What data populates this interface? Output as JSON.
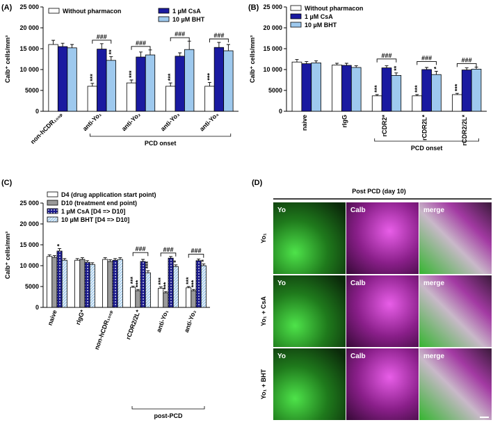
{
  "chart_data": [
    {
      "type": "bar",
      "panel": "(A)",
      "ylabel": "Calb⁺ cells/mm³",
      "categories": [
        "non-hCDR₁₀₀ₚ",
        "anti-Yo₁",
        "anti-Yo₂",
        "anti-Yo₃",
        "anti-Yo₄"
      ],
      "series": [
        {
          "name": "Without pharmacon",
          "color": "#ffffff",
          "values": [
            16000,
            6000,
            6800,
            6000,
            6000
          ],
          "errors": [
            1000,
            700,
            700,
            800,
            900
          ],
          "sig": [
            null,
            "***",
            "***",
            "***",
            "***"
          ]
        },
        {
          "name": "1 µM CsA",
          "color": "#1a1aa0",
          "values": [
            15500,
            14900,
            13000,
            13200,
            15300
          ],
          "errors": [
            800,
            1300,
            1200,
            800,
            1200
          ],
          "sig": [
            null,
            null,
            null,
            null,
            null
          ]
        },
        {
          "name": "10 µM BHT",
          "color": "#9ec9ee",
          "values": [
            15200,
            12200,
            13500,
            14800,
            14500
          ],
          "errors": [
            800,
            900,
            1200,
            2000,
            1500
          ],
          "sig": [
            null,
            "**",
            null,
            null,
            null
          ]
        }
      ],
      "group_sig": [
        null,
        "###",
        "###",
        "###",
        "###"
      ],
      "group_label": "PCD onset",
      "ylim": [
        0,
        25000
      ],
      "yticks": [
        0,
        5000,
        {
          "value": 10000,
          "label": "10 000"
        },
        {
          "value": 15000,
          "label": "15 000"
        },
        {
          "value": 20000,
          "label": "20 000"
        },
        {
          "value": 25000,
          "label": "25 000"
        }
      ]
    },
    {
      "type": "bar",
      "panel": "(B)",
      "ylabel": "Calb⁺ cells/mm³",
      "categories": [
        "naive",
        "rIgG",
        "rCDR2*",
        "rCDR2L*",
        "rCDR2/2L*"
      ],
      "series": [
        {
          "name": "Without pharmacon",
          "color": "#ffffff",
          "values": [
            11800,
            11100,
            3700,
            3700,
            4000
          ],
          "errors": [
            600,
            400,
            300,
            300,
            300
          ],
          "sig": [
            null,
            null,
            "***",
            "***",
            "***"
          ]
        },
        {
          "name": "1 µM CsA",
          "color": "#1a1aa0",
          "values": [
            11400,
            11000,
            10400,
            10000,
            9900
          ],
          "errors": [
            500,
            500,
            500,
            500,
            500
          ],
          "sig": [
            null,
            null,
            null,
            null,
            null
          ]
        },
        {
          "name": "10 µM BHT",
          "color": "#9ec9ee",
          "values": [
            11600,
            10500,
            8600,
            8800,
            10100
          ],
          "errors": [
            500,
            400,
            600,
            800,
            500
          ],
          "sig": [
            null,
            null,
            "**",
            "*",
            null
          ]
        }
      ],
      "group_sig": [
        null,
        null,
        "###",
        "###",
        "###"
      ],
      "group_label": "PCD onset",
      "ylim": [
        0,
        25000
      ],
      "yticks": [
        0,
        5000,
        {
          "value": 10000,
          "label": "10 000"
        },
        {
          "value": 15000,
          "label": "15 000"
        },
        {
          "value": 20000,
          "label": "20 000"
        },
        {
          "value": 25000,
          "label": "25 000"
        }
      ]
    },
    {
      "type": "bar",
      "panel": "(C)",
      "ylabel": "Calb⁺ cells/mm³",
      "categories": [
        "naive",
        "rIgG*",
        "non-hCDR₁₀₀ₚ",
        "rCDR2/2L*",
        "anti-Yo₁",
        "anti-Yo₂"
      ],
      "series": [
        {
          "name": "D4 (drug application start point)",
          "color": "#ffffff",
          "values": [
            12200,
            11300,
            11500,
            4800,
            4600,
            4700
          ],
          "errors": [
            400,
            400,
            400,
            300,
            300,
            300
          ],
          "sig": [
            null,
            null,
            null,
            "***",
            "***",
            "***"
          ]
        },
        {
          "name": "D10 (treatment end point)",
          "color": "#9a9a9a",
          "values": [
            12000,
            11500,
            11000,
            4000,
            3500,
            4000
          ],
          "errors": [
            400,
            400,
            400,
            300,
            300,
            300
          ],
          "sig": [
            null,
            null,
            null,
            "***",
            "***",
            "***"
          ]
        },
        {
          "name": "1 µM CsA [D4 => D10]",
          "color": "#1a1a8c",
          "pattern": "dots",
          "values": [
            13500,
            10800,
            11300,
            11000,
            11800,
            11200
          ],
          "errors": [
            600,
            400,
            400,
            500,
            400,
            400
          ],
          "sig": [
            "*",
            null,
            null,
            null,
            null,
            null
          ]
        },
        {
          "name": "10 µM BHT [D4 => D10]",
          "color": "#a9cdeb",
          "pattern": "hatch",
          "values": [
            11300,
            10300,
            11500,
            8300,
            9800,
            10000
          ],
          "errors": [
            400,
            400,
            400,
            500,
            400,
            400
          ],
          "sig": [
            null,
            null,
            null,
            "***",
            "*",
            "*"
          ]
        }
      ],
      "group_sig": [
        null,
        null,
        null,
        "###",
        "###",
        "###"
      ],
      "group_label": "post-PCD",
      "ylim": [
        0,
        25000
      ],
      "yticks": [
        0,
        5000,
        {
          "value": 10000,
          "label": "10 000"
        },
        {
          "value": 15000,
          "label": "15 000"
        },
        {
          "value": 20000,
          "label": "20 000"
        },
        {
          "value": 25000,
          "label": "25 000"
        }
      ]
    }
  ],
  "panel_d": {
    "label": "(D)",
    "title": "Post PCD (day 10)",
    "columns": [
      "Yo",
      "Calb",
      "merge"
    ],
    "rows": [
      "Yo₁",
      "Yo₁ + CsA",
      "Yo₁ + BHT"
    ]
  }
}
